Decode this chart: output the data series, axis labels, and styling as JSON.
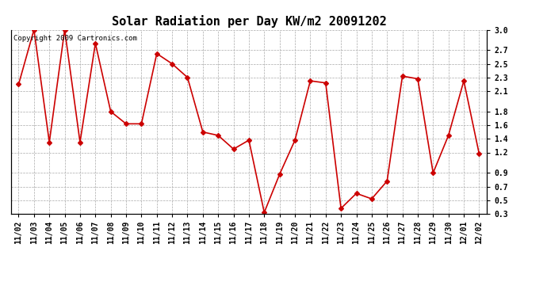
{
  "title": "Solar Radiation per Day KW/m2 20091202",
  "copyright_text": "Copyright 2009 Cartronics.com",
  "labels": [
    "11/02",
    "11/03",
    "11/04",
    "11/05",
    "11/06",
    "11/07",
    "11/08",
    "11/09",
    "11/10",
    "11/11",
    "11/12",
    "11/13",
    "11/14",
    "11/15",
    "11/16",
    "11/17",
    "11/18",
    "11/19",
    "11/20",
    "11/21",
    "11/22",
    "11/23",
    "11/24",
    "11/25",
    "11/26",
    "11/27",
    "11/28",
    "11/29",
    "11/30",
    "12/01",
    "12/02"
  ],
  "values": [
    2.2,
    3.0,
    1.35,
    3.0,
    1.35,
    2.8,
    1.8,
    1.62,
    1.62,
    2.65,
    2.5,
    2.3,
    1.5,
    1.45,
    1.25,
    1.38,
    0.32,
    0.88,
    1.38,
    2.25,
    2.22,
    0.38,
    0.6,
    0.52,
    0.78,
    2.32,
    2.28,
    0.9,
    1.45,
    2.25,
    1.18
  ],
  "line_color": "#cc0000",
  "marker": "D",
  "marker_size": 3,
  "bg_color": "#ffffff",
  "grid_color": "#aaaaaa",
  "ylim": [
    0.3,
    3.0
  ],
  "yticks": [
    0.3,
    0.5,
    0.7,
    0.9,
    1.2,
    1.4,
    1.6,
    1.8,
    2.1,
    2.3,
    2.5,
    2.7,
    3.0
  ],
  "title_fontsize": 11,
  "tick_fontsize": 7,
  "copyright_fontsize": 6.5
}
